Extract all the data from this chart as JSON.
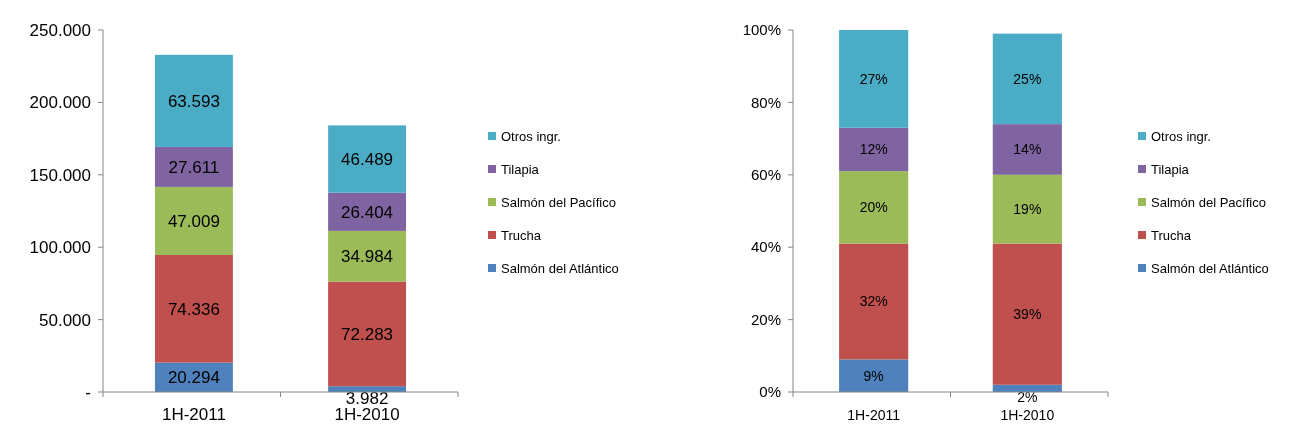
{
  "chart_data": [
    {
      "type": "bar",
      "stacked": true,
      "categories": [
        "1H-2011",
        "1H-2010"
      ],
      "series": [
        {
          "name": "Salmón del Atlántico",
          "color": "#4f81bd",
          "values": [
            20294,
            3982
          ],
          "value_labels": [
            "20.294",
            "3.982"
          ]
        },
        {
          "name": "Trucha",
          "color": "#c0504d",
          "values": [
            74336,
            72283
          ],
          "value_labels": [
            "74.336",
            "72.283"
          ]
        },
        {
          "name": "Salmón del Pacífico",
          "color": "#9bbb59",
          "values": [
            47009,
            34984
          ],
          "value_labels": [
            "47.009",
            "34.984"
          ]
        },
        {
          "name": "Tilapia",
          "color": "#8064a2",
          "values": [
            27611,
            26404
          ],
          "value_labels": [
            "27.611",
            "26.404"
          ]
        },
        {
          "name": "Otros ingr.",
          "color": "#4bacc6",
          "values": [
            63593,
            46489
          ],
          "value_labels": [
            "63.593",
            "46.489"
          ]
        }
      ],
      "ylim": [
        0,
        250000
      ],
      "yticks": [
        {
          "value": 0,
          "label": "-"
        },
        {
          "value": 50000,
          "label": "50.000"
        },
        {
          "value": 100000,
          "label": "100.000"
        },
        {
          "value": 150000,
          "label": "150.000"
        },
        {
          "value": 200000,
          "label": "200.000"
        },
        {
          "value": 250000,
          "label": "250.000"
        }
      ],
      "legend": "right",
      "grid": false
    },
    {
      "type": "bar",
      "stacked": true,
      "categories": [
        "1H-2011",
        "1H-2010"
      ],
      "series": [
        {
          "name": "Salmón del Atlántico",
          "color": "#4f81bd",
          "values": [
            9,
            2
          ],
          "value_labels": [
            "9%",
            "2%"
          ]
        },
        {
          "name": "Trucha",
          "color": "#c0504d",
          "values": [
            32,
            39
          ],
          "value_labels": [
            "32%",
            "39%"
          ]
        },
        {
          "name": "Salmón del Pacífico",
          "color": "#9bbb59",
          "values": [
            20,
            19
          ],
          "value_labels": [
            "20%",
            "19%"
          ]
        },
        {
          "name": "Tilapia",
          "color": "#8064a2",
          "values": [
            12,
            14
          ],
          "value_labels": [
            "12%",
            "14%"
          ]
        },
        {
          "name": "Otros ingr.",
          "color": "#4bacc6",
          "values": [
            27,
            25
          ],
          "value_labels": [
            "27%",
            "25%"
          ]
        }
      ],
      "ylim": [
        0,
        100
      ],
      "yticks": [
        {
          "value": 0,
          "label": "0%"
        },
        {
          "value": 20,
          "label": "20%"
        },
        {
          "value": 40,
          "label": "40%"
        },
        {
          "value": 60,
          "label": "60%"
        },
        {
          "value": 80,
          "label": "80%"
        },
        {
          "value": 100,
          "label": "100%"
        }
      ],
      "legend": "right",
      "grid": false
    }
  ]
}
